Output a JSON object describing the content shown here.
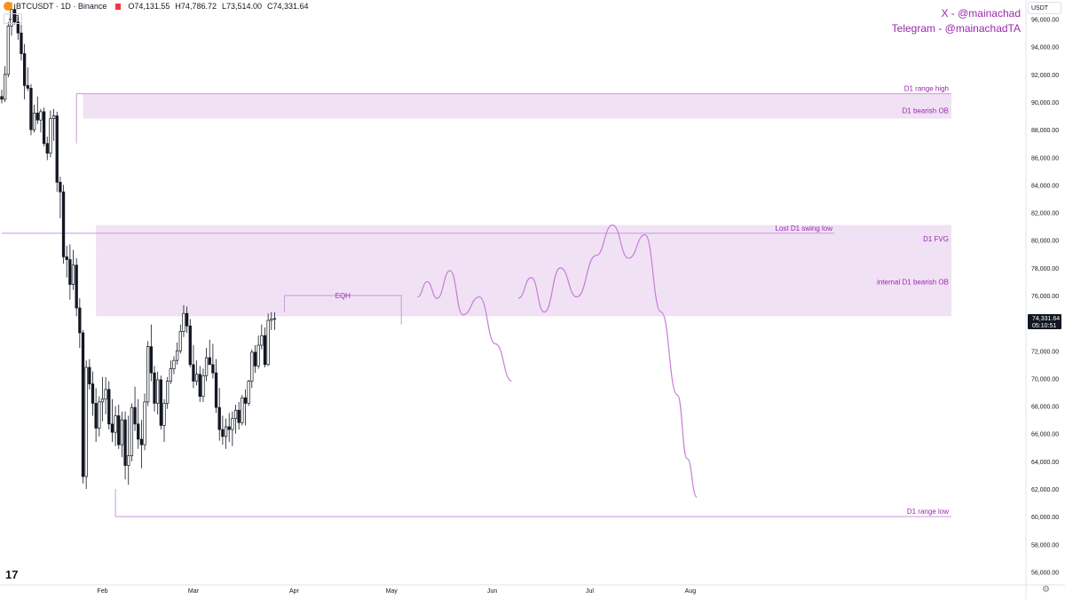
{
  "header": {
    "symbol": "BTCUSDT · 1D · Binance",
    "open": "O74,131.55",
    "high": "H74,786.72",
    "low": "L73,514.00",
    "close": "C74,331.64",
    "interval_indicator": "5"
  },
  "social": {
    "x_handle": "X - @mainachad",
    "telegram": "Telegram - @mainachadTA"
  },
  "currency_label": "USDT",
  "price_tag": {
    "price": "74,331.64",
    "countdown": "05:10:51"
  },
  "tv_logo": "17",
  "colors": {
    "zone_fill": "#e9d5f0",
    "zone_line": "#c89ad8",
    "label_purple": "#9c27b0",
    "projection": "#c77dd8"
  },
  "chart_data": {
    "type": "candlestick",
    "ylim": [
      55000,
      97000
    ],
    "y_ticks": [
      "56,000.00",
      "58,000.00",
      "60,000.00",
      "62,000.00",
      "64,000.00",
      "66,000.00",
      "68,000.00",
      "70,000.00",
      "72,000.00",
      "74,000.00",
      "76,000.00",
      "78,000.00",
      "80,000.00",
      "82,000.00",
      "84,000.00",
      "86,000.00",
      "88,000.00",
      "90,000.00",
      "92,000.00",
      "94,000.00",
      "96,000.00"
    ],
    "x_ticks": [
      {
        "label": "Feb",
        "day": 31
      },
      {
        "label": "Mar",
        "day": 59
      },
      {
        "label": "Apr",
        "day": 90
      },
      {
        "label": "May",
        "day": 120
      },
      {
        "label": "Jun",
        "day": 151
      },
      {
        "label": "Jul",
        "day": 181
      },
      {
        "label": "Aug",
        "day": 212
      }
    ],
    "candles": [
      [
        90400,
        90900,
        89900,
        90200
      ],
      [
        90200,
        92600,
        90000,
        92000
      ],
      [
        92000,
        95800,
        91800,
        95500
      ],
      [
        95500,
        97200,
        94800,
        96700
      ],
      [
        96700,
        97100,
        95600,
        95800
      ],
      [
        95800,
        96300,
        94500,
        95000
      ],
      [
        95000,
        95600,
        93000,
        93500
      ],
      [
        93500,
        94200,
        90200,
        91200
      ],
      [
        91200,
        92500,
        90800,
        91000
      ],
      [
        91000,
        91300,
        87600,
        88000
      ],
      [
        88000,
        89800,
        87800,
        89200
      ],
      [
        89200,
        90400,
        88400,
        88700
      ],
      [
        88700,
        89500,
        87800,
        89300
      ],
      [
        89300,
        89600,
        86800,
        87000
      ],
      [
        87000,
        87500,
        85800,
        86300
      ],
      [
        86300,
        89400,
        86000,
        88800
      ],
      [
        88800,
        89500,
        87200,
        89000
      ],
      [
        89000,
        89300,
        83500,
        84200
      ],
      [
        84200,
        84600,
        81600,
        83500
      ],
      [
        83500,
        84000,
        78300,
        78800
      ],
      [
        78800,
        79600,
        77300,
        78600
      ],
      [
        78600,
        79700,
        75700,
        76800
      ],
      [
        76800,
        79300,
        76400,
        78200
      ],
      [
        78200,
        78700,
        74500,
        75100
      ],
      [
        75100,
        75800,
        72200,
        73300
      ],
      [
        73300,
        73500,
        62400,
        62900
      ],
      [
        62900,
        71300,
        62000,
        70800
      ],
      [
        70800,
        71400,
        69200,
        69600
      ],
      [
        69600,
        70500,
        67300,
        68200
      ],
      [
        68200,
        69300,
        65400,
        66400
      ],
      [
        66400,
        68700,
        65800,
        68300
      ],
      [
        68300,
        70100,
        66900,
        68500
      ],
      [
        68500,
        70100,
        67400,
        69200
      ],
      [
        69200,
        69800,
        66300,
        66700
      ],
      [
        66700,
        68500,
        65400,
        66100
      ],
      [
        66100,
        68000,
        65100,
        67300
      ],
      [
        67300,
        68100,
        64900,
        65200
      ],
      [
        65200,
        67600,
        64300,
        67000
      ],
      [
        67000,
        67600,
        62700,
        63700
      ],
      [
        63700,
        67300,
        62300,
        64400
      ],
      [
        64400,
        68200,
        64000,
        67900
      ],
      [
        67900,
        69400,
        66200,
        66700
      ],
      [
        66700,
        68500,
        64900,
        65600
      ],
      [
        65600,
        67000,
        63500,
        65200
      ],
      [
        65200,
        68900,
        64800,
        68300
      ],
      [
        68300,
        72700,
        68000,
        72300
      ],
      [
        72300,
        73900,
        69800,
        70400
      ],
      [
        70400,
        70900,
        67600,
        68200
      ],
      [
        68200,
        70500,
        67400,
        69900
      ],
      [
        69900,
        70200,
        66300,
        66600
      ],
      [
        66600,
        68500,
        65400,
        68200
      ],
      [
        68200,
        70100,
        67800,
        69800
      ],
      [
        69800,
        71300,
        69600,
        70700
      ],
      [
        70700,
        71600,
        70300,
        71300
      ],
      [
        71300,
        72600,
        71000,
        72000
      ],
      [
        72000,
        73900,
        71800,
        73400
      ],
      [
        73400,
        75300,
        73000,
        74700
      ],
      [
        74700,
        75200,
        73300,
        73800
      ],
      [
        73800,
        74300,
        70800,
        71000
      ],
      [
        71000,
        72400,
        69300,
        69800
      ],
      [
        69800,
        71300,
        69500,
        70300
      ],
      [
        70300,
        70900,
        68300,
        68700
      ],
      [
        68700,
        70700,
        68300,
        70200
      ],
      [
        70200,
        72200,
        69800,
        71500
      ],
      [
        71500,
        72800,
        71000,
        71000
      ],
      [
        71000,
        72500,
        70000,
        70400
      ],
      [
        70400,
        71400,
        67500,
        67900
      ],
      [
        67900,
        69300,
        65500,
        66300
      ],
      [
        66300,
        67300,
        65200,
        65800
      ],
      [
        65800,
        67100,
        64900,
        66500
      ],
      [
        66500,
        67500,
        65400,
        66300
      ],
      [
        66300,
        67600,
        65100,
        67100
      ],
      [
        67100,
        68100,
        66000,
        67700
      ],
      [
        67700,
        68300,
        66300,
        66800
      ],
      [
        66800,
        68800,
        66600,
        68600
      ],
      [
        68600,
        69200,
        66600,
        68200
      ],
      [
        68200,
        69900,
        68000,
        69800
      ],
      [
        69800,
        72100,
        69300,
        71900
      ],
      [
        71900,
        72400,
        70400,
        70900
      ],
      [
        70900,
        73100,
        70700,
        72400
      ],
      [
        72400,
        73900,
        72100,
        73100
      ],
      [
        73100,
        73700,
        70800,
        71000
      ],
      [
        71000,
        74700,
        70900,
        74200
      ],
      [
        74200,
        74800,
        73500,
        74300
      ],
      [
        74300,
        74787,
        73514,
        74332
      ]
    ],
    "zones": [
      {
        "label": "D1 bearish OB",
        "y0": 88800,
        "y1": 90600
      },
      {
        "label": "D1 FVG",
        "y0": 79400,
        "y1": 81100
      },
      {
        "label": "internal D1 bearish OB",
        "y0": 74500,
        "y1": 79400
      }
    ],
    "levels": [
      {
        "label": "D1 range high",
        "y": 90600,
        "start_day": 23
      },
      {
        "label": "Lost D1 swing low",
        "y": 80500,
        "start_day": 0
      },
      {
        "label": "D1 range low",
        "y": 60000,
        "start_day": 35
      }
    ],
    "eqh": {
      "label": "EQH",
      "y": 76000,
      "start_day": 87,
      "end_day": 123
    },
    "projection": [
      {
        "path": [
          [
            128,
            75900
          ],
          [
            131,
            77000
          ],
          [
            134,
            75800
          ],
          [
            138,
            77800
          ],
          [
            142,
            74600
          ],
          [
            147,
            75900
          ],
          [
            152,
            72500
          ],
          [
            157,
            69800
          ]
        ]
      },
      {
        "path": [
          [
            159,
            75800
          ],
          [
            163,
            77300
          ],
          [
            167,
            74800
          ],
          [
            172,
            78000
          ],
          [
            177,
            75900
          ],
          [
            183,
            78900
          ],
          [
            188,
            81100
          ],
          [
            193,
            78700
          ],
          [
            198,
            80400
          ],
          [
            203,
            74800
          ],
          [
            208,
            68800
          ],
          [
            211,
            64200
          ],
          [
            214,
            61400
          ]
        ]
      }
    ]
  }
}
